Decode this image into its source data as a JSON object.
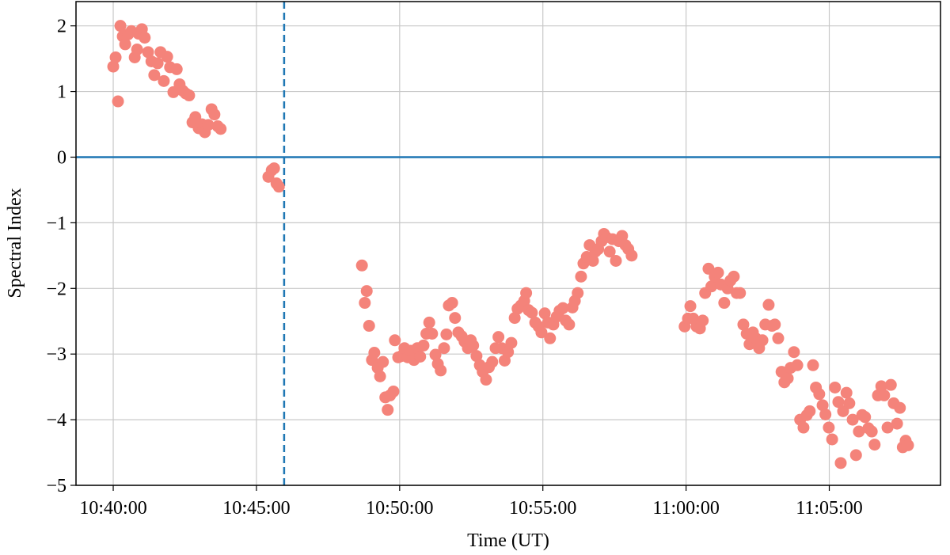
{
  "chart_data": {
    "type": "scatter",
    "x_label": "Time (UT)",
    "y_label": "Spectral Index",
    "xlim": [
      "10:38:42",
      "11:08:53"
    ],
    "ylim": [
      -5,
      2.37
    ],
    "xticks": [
      "10:40:00",
      "10:45:00",
      "10:50:00",
      "10:55:00",
      "11:00:00",
      "11:05:00"
    ],
    "yticks": [
      {
        "value": -5,
        "label": "−5"
      },
      {
        "value": -4,
        "label": "−4"
      },
      {
        "value": -3,
        "label": "−3"
      },
      {
        "value": -2,
        "label": "−2"
      },
      {
        "value": -1,
        "label": "−1"
      },
      0,
      1,
      2
    ],
    "grid": true,
    "color": "#f4837a",
    "hline": {
      "value": 0,
      "color": "#1f77b4"
    },
    "vline": {
      "value": "10:45:58",
      "color": "#1f77b4"
    },
    "x": [
      "10:40:00",
      "10:40:05",
      "10:40:10",
      "10:40:15",
      "10:40:20",
      "10:40:25",
      "10:40:31",
      "10:40:38",
      "10:40:45",
      "10:40:50",
      "10:40:53",
      "10:41:00",
      "10:41:06",
      "10:41:13",
      "10:41:20",
      "10:41:26",
      "10:41:33",
      "10:41:39",
      "10:41:46",
      "10:41:53",
      "10:41:59",
      "10:42:06",
      "10:42:13",
      "10:42:19",
      "10:42:26",
      "10:42:32",
      "10:42:39",
      "10:42:46",
      "10:42:52",
      "10:42:59",
      "10:43:06",
      "10:43:12",
      "10:43:19",
      "10:43:26",
      "10:43:32",
      "10:43:39",
      "10:43:45",
      "10:45:25",
      "10:45:32",
      "10:45:37",
      "10:45:42",
      "10:45:47",
      "10:48:41",
      "10:48:47",
      "10:48:51",
      "10:48:56",
      "10:49:02",
      "10:49:07",
      "10:49:14",
      "10:49:19",
      "10:49:25",
      "10:49:30",
      "10:49:35",
      "10:49:40",
      "10:49:47",
      "10:49:50",
      "10:49:57",
      "10:50:04",
      "10:50:10",
      "10:50:17",
      "10:50:23",
      "10:50:30",
      "10:50:37",
      "10:50:43",
      "10:50:50",
      "10:50:56",
      "10:51:02",
      "10:51:08",
      "10:51:15",
      "10:51:20",
      "10:51:26",
      "10:51:33",
      "10:51:38",
      "10:51:43",
      "10:51:50",
      "10:51:56",
      "10:52:03",
      "10:52:10",
      "10:52:16",
      "10:52:23",
      "10:52:29",
      "10:52:34",
      "10:52:41",
      "10:52:48",
      "10:52:54",
      "10:53:01",
      "10:53:07",
      "10:53:14",
      "10:53:21",
      "10:53:27",
      "10:53:34",
      "10:53:40",
      "10:53:47",
      "10:53:54",
      "10:54:01",
      "10:54:07",
      "10:54:14",
      "10:54:21",
      "10:54:25",
      "10:54:30",
      "10:54:37",
      "10:54:44",
      "10:54:51",
      "10:54:57",
      "10:55:04",
      "10:55:11",
      "10:55:15",
      "10:55:22",
      "10:55:29",
      "10:55:35",
      "10:55:42",
      "10:55:48",
      "10:55:55",
      "10:56:02",
      "10:56:07",
      "10:56:13",
      "10:56:20",
      "10:56:25",
      "10:56:32",
      "10:56:38",
      "10:56:45",
      "10:56:50",
      "10:56:56",
      "10:57:03",
      "10:57:08",
      "10:57:13",
      "10:57:20",
      "10:57:26",
      "10:57:33",
      "10:57:39",
      "10:57:46",
      "10:57:53",
      "10:57:59",
      "10:58:06",
      "10:59:57",
      "11:00:04",
      "11:00:09",
      "11:00:15",
      "11:00:22",
      "11:00:29",
      "11:00:35",
      "11:00:40",
      "11:00:47",
      "11:00:53",
      "11:01:00",
      "11:01:07",
      "11:01:13",
      "11:01:20",
      "11:01:27",
      "11:01:33",
      "11:01:40",
      "11:01:46",
      "11:01:53",
      "11:02:00",
      "11:02:07",
      "11:02:13",
      "11:02:20",
      "11:02:26",
      "11:02:33",
      "11:02:40",
      "11:02:46",
      "11:02:53",
      "11:03:00",
      "11:03:06",
      "11:03:13",
      "11:03:20",
      "11:03:26",
      "11:03:33",
      "11:03:39",
      "11:03:46",
      "11:03:53",
      "11:03:59",
      "11:04:06",
      "11:04:13",
      "11:04:19",
      "11:04:26",
      "11:04:32",
      "11:04:39",
      "11:04:46",
      "11:04:52",
      "11:04:59",
      "11:05:06",
      "11:05:12",
      "11:05:19",
      "11:05:24",
      "11:05:29",
      "11:05:36",
      "11:05:42",
      "11:05:49",
      "11:05:56",
      "11:06:02",
      "11:06:09",
      "11:06:15",
      "11:06:22",
      "11:06:29",
      "11:06:35",
      "11:06:42",
      "11:06:49",
      "11:06:55",
      "11:07:02",
      "11:07:09",
      "11:07:15",
      "11:07:22",
      "11:07:28",
      "11:07:34",
      "11:07:40",
      "11:07:45"
    ],
    "values": [
      1.38,
      1.52,
      0.85,
      2.0,
      1.84,
      1.72,
      1.87,
      1.92,
      1.52,
      1.64,
      1.88,
      1.95,
      1.82,
      1.6,
      1.46,
      1.25,
      1.43,
      1.6,
      1.16,
      1.53,
      1.37,
      0.99,
      1.34,
      1.11,
      1.01,
      0.97,
      0.94,
      0.53,
      0.61,
      0.44,
      0.5,
      0.38,
      0.49,
      0.73,
      0.65,
      0.47,
      0.43,
      -0.3,
      -0.2,
      -0.17,
      -0.4,
      -0.45,
      -1.65,
      -2.22,
      -2.04,
      -2.57,
      -3.09,
      -2.98,
      -3.21,
      -3.34,
      -3.12,
      -3.66,
      -3.85,
      -3.63,
      -3.57,
      -2.79,
      -3.05,
      -3.03,
      -2.91,
      -3.05,
      -2.95,
      -3.09,
      -2.91,
      -3.04,
      -2.87,
      -2.69,
      -2.52,
      -2.69,
      -3.01,
      -3.15,
      -3.25,
      -2.91,
      -2.7,
      -2.26,
      -2.22,
      -2.45,
      -2.67,
      -2.73,
      -2.81,
      -2.91,
      -2.79,
      -2.87,
      -3.03,
      -3.17,
      -3.27,
      -3.39,
      -3.2,
      -3.12,
      -2.91,
      -2.74,
      -2.91,
      -3.1,
      -2.97,
      -2.83,
      -2.45,
      -2.31,
      -2.26,
      -2.19,
      -2.07,
      -2.33,
      -2.37,
      -2.52,
      -2.58,
      -2.67,
      -2.38,
      -2.52,
      -2.76,
      -2.55,
      -2.43,
      -2.34,
      -2.3,
      -2.49,
      -2.55,
      -2.29,
      -2.19,
      -2.07,
      -1.82,
      -1.62,
      -1.52,
      -1.34,
      -1.58,
      -1.44,
      -1.4,
      -1.28,
      -1.17,
      -1.22,
      -1.44,
      -1.25,
      -1.58,
      -1.28,
      -1.2,
      -1.34,
      -1.4,
      -1.5,
      -2.58,
      -2.46,
      -2.27,
      -2.46,
      -2.58,
      -2.61,
      -2.49,
      -2.07,
      -1.7,
      -1.97,
      -1.82,
      -1.76,
      -1.94,
      -2.22,
      -2.0,
      -1.88,
      -1.82,
      -2.07,
      -2.07,
      -2.55,
      -2.69,
      -2.85,
      -2.67,
      -2.76,
      -2.91,
      -2.79,
      -2.55,
      -2.25,
      -2.57,
      -2.55,
      -2.76,
      -3.27,
      -3.43,
      -3.37,
      -3.21,
      -2.97,
      -3.17,
      -4.0,
      -4.12,
      -3.93,
      -3.87,
      -3.17,
      -3.51,
      -3.61,
      -3.78,
      -3.92,
      -4.12,
      -4.3,
      -3.51,
      -3.73,
      -4.66,
      -3.87,
      -3.59,
      -3.75,
      -4.0,
      -4.54,
      -4.18,
      -3.93,
      -3.96,
      -4.13,
      -4.18,
      -4.38,
      -3.63,
      -3.49,
      -3.63,
      -4.12,
      -3.47,
      -3.75,
      -4.06,
      -3.82,
      -4.42,
      -4.32,
      -4.39
    ]
  }
}
